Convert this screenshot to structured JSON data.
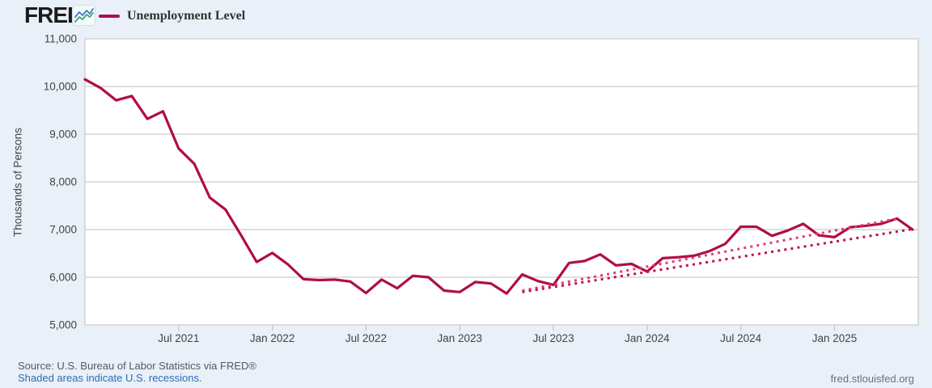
{
  "header": {
    "logo_text": "FRED",
    "registered_mark": "®",
    "legend": {
      "label": "Unemployment Level",
      "swatch_color": "#b00d49"
    }
  },
  "footer": {
    "source_line": "Source: U.S. Bureau of Labor Statistics via FRED®",
    "recession_note": "Shaded areas indicate U.S. recessions.",
    "site_url": "fred.stlouisfed.org"
  },
  "chart_data": {
    "type": "line",
    "title": "Unemployment Level",
    "ylabel": "Thousands of Persons",
    "ylim": [
      5000,
      11000
    ],
    "y_ticks": [
      11000,
      10000,
      9000,
      8000,
      7000,
      6000,
      5000
    ],
    "y_tick_labels": [
      "11,000",
      "10,000",
      "9,000",
      "8,000",
      "7,000",
      "6,000",
      "5,000"
    ],
    "x_tick_labels": [
      "Jul 2021",
      "Jan 2022",
      "Jul 2022",
      "Jan 2023",
      "Jul 2023",
      "Jan 2024",
      "Jul 2024",
      "Jan 2025"
    ],
    "x_tick_months": [
      "2021-07",
      "2022-01",
      "2022-07",
      "2023-01",
      "2023-07",
      "2024-01",
      "2024-07",
      "2025-01"
    ],
    "x_range_months": [
      "2021-01",
      "2025-06"
    ],
    "grid": true,
    "legend_position": "top-left",
    "colors": {
      "background": "#e9f0f7",
      "plot_background": "#ffffff",
      "gridline": "#cccccc",
      "tick_mark": "#bac8d7",
      "axis_text": "#444444",
      "series_main": "#b00d49",
      "projection_upper": "#e23a74",
      "projection_lower": "#bd1150"
    },
    "series": [
      {
        "name": "Unemployment Level",
        "style": "solid",
        "color": "#b00d49",
        "start_month": "2021-01",
        "values": [
          10150,
          9970,
          9710,
          9800,
          9320,
          9480,
          8700,
          8380,
          7670,
          7420,
          6880,
          6320,
          6510,
          6270,
          5960,
          5940,
          5950,
          5910,
          5670,
          5950,
          5770,
          6030,
          6000,
          5720,
          5690,
          5900,
          5870,
          5660,
          6060,
          5920,
          5840,
          6300,
          6340,
          6480,
          6250,
          6280,
          6120,
          6400,
          6420,
          6450,
          6550,
          6700,
          7060,
          7060,
          6870,
          6980,
          7120,
          6880,
          6840,
          7050,
          7080,
          7120,
          7230,
          7000
        ]
      },
      {
        "name": "projection-upper",
        "style": "dotted",
        "color": "#e23a74",
        "points": [
          {
            "month": "2023-05",
            "value": 5720
          },
          {
            "month": "2025-05",
            "value": 7230
          }
        ]
      },
      {
        "name": "projection-lower",
        "style": "dotted",
        "color": "#bd1150",
        "points": [
          {
            "month": "2023-05",
            "value": 5690
          },
          {
            "month": "2025-06",
            "value": 7010
          }
        ]
      }
    ]
  }
}
